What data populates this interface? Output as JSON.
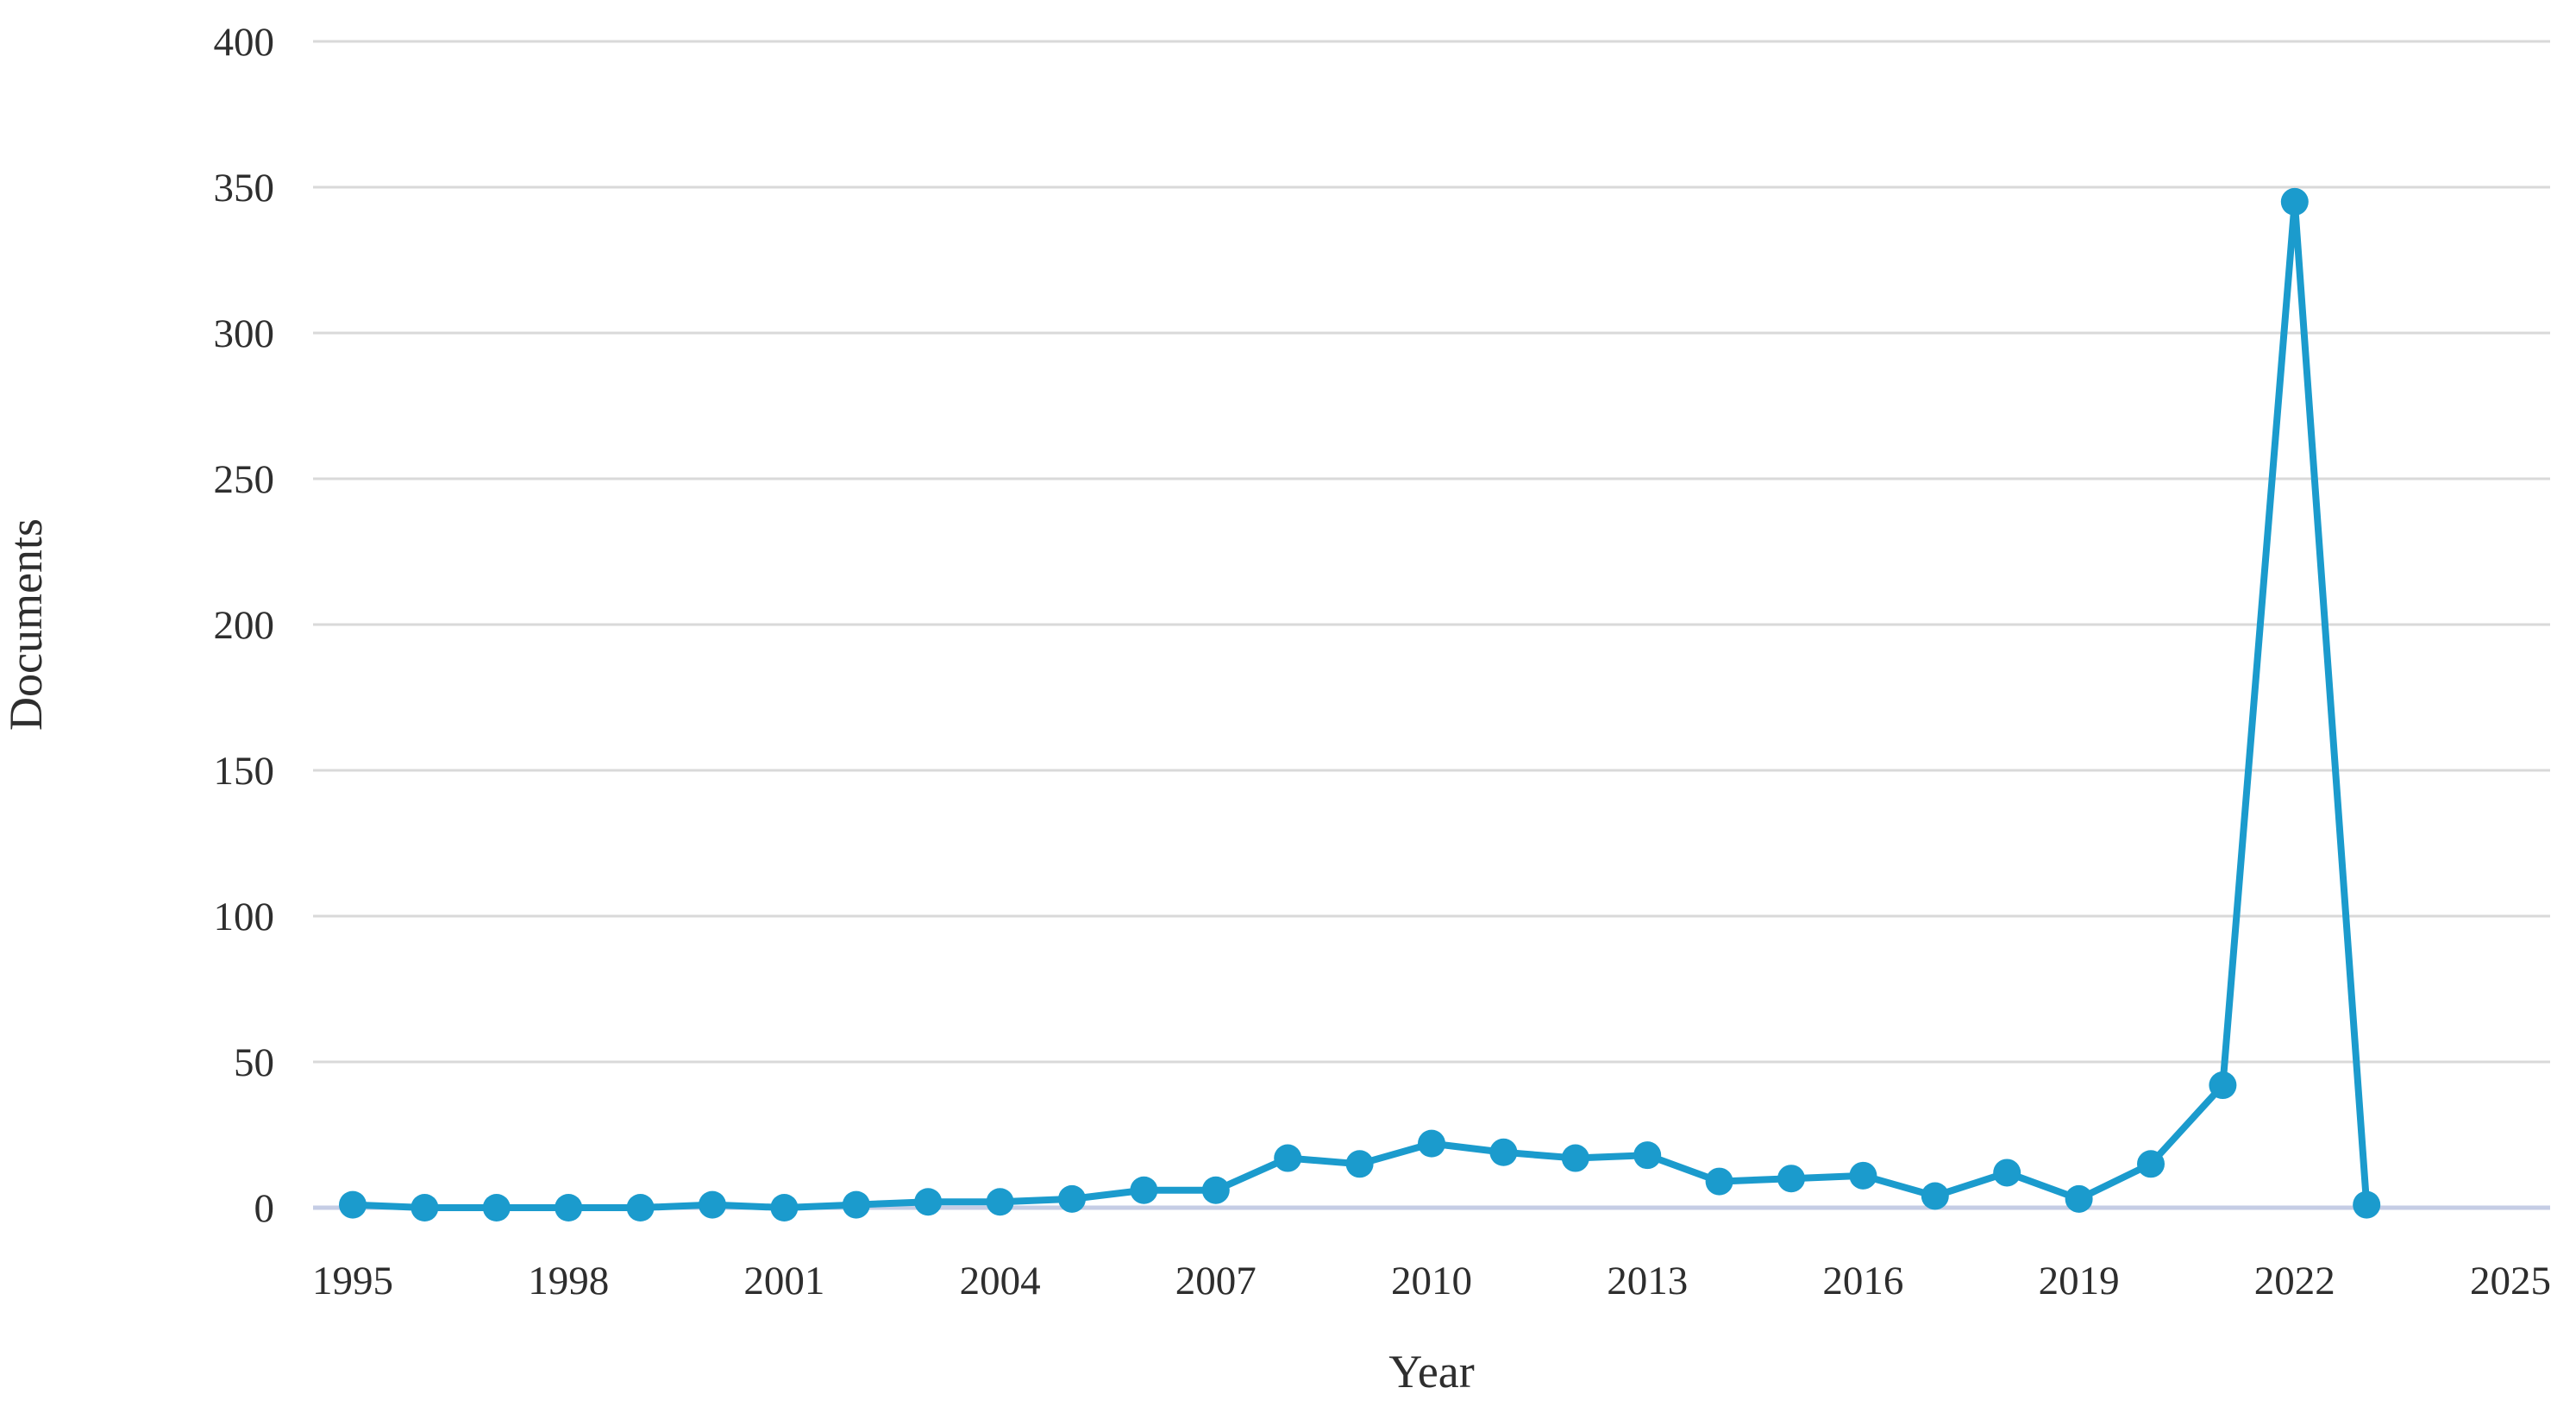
{
  "figure": {
    "background_color": "#ffffff",
    "text_color": "#2e2e2e",
    "gridline_color": "#d9d9d9",
    "axis_line_color": "#c5cde5"
  },
  "chart_data": {
    "type": "line",
    "title": "",
    "xlabel": "Year",
    "ylabel": "Documents",
    "x": [
      1995,
      1996,
      1997,
      1998,
      1999,
      2000,
      2001,
      2002,
      2003,
      2004,
      2005,
      2006,
      2007,
      2008,
      2009,
      2010,
      2011,
      2012,
      2013,
      2014,
      2015,
      2016,
      2017,
      2018,
      2019,
      2020,
      2021,
      2022,
      2023
    ],
    "series": [
      {
        "name": "Documents",
        "values": [
          1,
          0,
          0,
          0,
          0,
          1,
          0,
          1,
          2,
          2,
          3,
          6,
          6,
          17,
          15,
          22,
          19,
          17,
          18,
          9,
          10,
          11,
          4,
          12,
          3,
          15,
          42,
          345,
          1
        ]
      }
    ],
    "xlim": [
      1995,
      2025
    ],
    "ylim": [
      0,
      400
    ],
    "xticks": [
      1995,
      1998,
      2001,
      2004,
      2007,
      2010,
      2013,
      2016,
      2019,
      2022,
      2025
    ],
    "yticks": [
      0,
      50,
      100,
      150,
      200,
      250,
      300,
      350,
      400
    ],
    "grid": "horizontal",
    "legend": "none",
    "line_color": "#1b9bcd",
    "marker": "circle"
  }
}
